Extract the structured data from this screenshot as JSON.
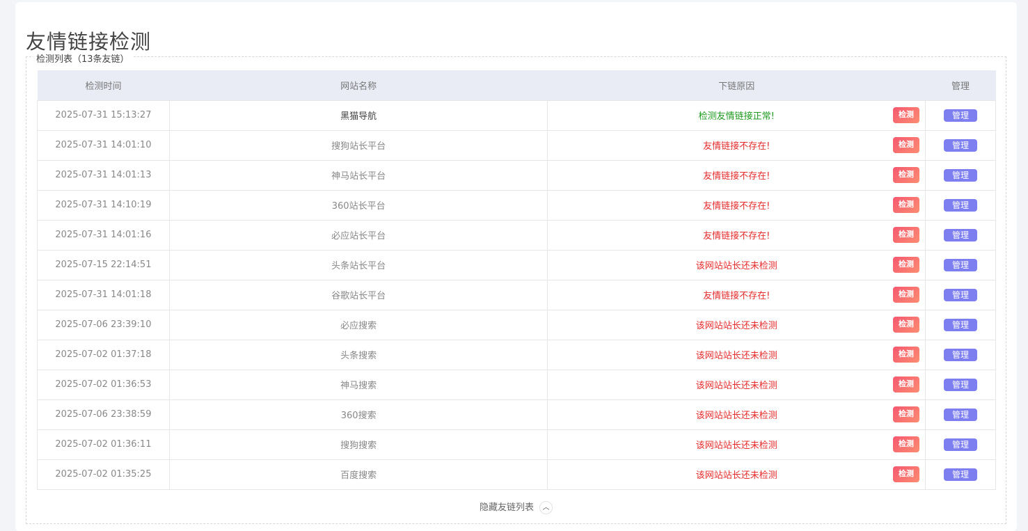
{
  "title": "友情链接检测",
  "legend": "检测列表（13条友链）",
  "headers": [
    "检测时间",
    "网站名称",
    "下链原因",
    "管理"
  ],
  "check_label": "检测",
  "manage_label": "管理",
  "rows": [
    {
      "time": "2025-07-31 15:13:27",
      "name": "黑猫导航",
      "reason": "检测友情链接正常!",
      "ok": true
    },
    {
      "time": "2025-07-31 14:01:10",
      "name": "搜狗站长平台",
      "reason": "友情链接不存在!"
    },
    {
      "time": "2025-07-31 14:01:13",
      "name": "神马站长平台",
      "reason": "友情链接不存在!"
    },
    {
      "time": "2025-07-31 14:10:19",
      "name": "360站长平台",
      "reason": "友情链接不存在!"
    },
    {
      "time": "2025-07-31 14:01:16",
      "name": "必应站长平台",
      "reason": "友情链接不存在!"
    },
    {
      "time": "2025-07-15 22:14:51",
      "name": "头条站长平台",
      "reason": "该网站站长还未检测"
    },
    {
      "time": "2025-07-31 14:01:18",
      "name": "谷歌站长平台",
      "reason": "友情链接不存在!"
    },
    {
      "time": "2025-07-06 23:39:10",
      "name": "必应搜索",
      "reason": "该网站站长还未检测"
    },
    {
      "time": "2025-07-02 01:37:18",
      "name": "头条搜索",
      "reason": "该网站站长还未检测"
    },
    {
      "time": "2025-07-02 01:36:53",
      "name": "神马搜索",
      "reason": "该网站站长还未检测"
    },
    {
      "time": "2025-07-06 23:38:59",
      "name": "360搜索",
      "reason": "该网站站长还未检测"
    },
    {
      "time": "2025-07-02 01:36:11",
      "name": "搜狗搜索",
      "reason": "该网站站长还未检测"
    },
    {
      "time": "2025-07-02 01:35:25",
      "name": "百度搜索",
      "reason": "该网站站长还未检测"
    }
  ],
  "footer": "隐藏友链列表",
  "colors": {
    "ok": "#1f9a1f",
    "error": "#e52b2b",
    "manage": "#7d7ef0",
    "check": "#f6586f"
  }
}
